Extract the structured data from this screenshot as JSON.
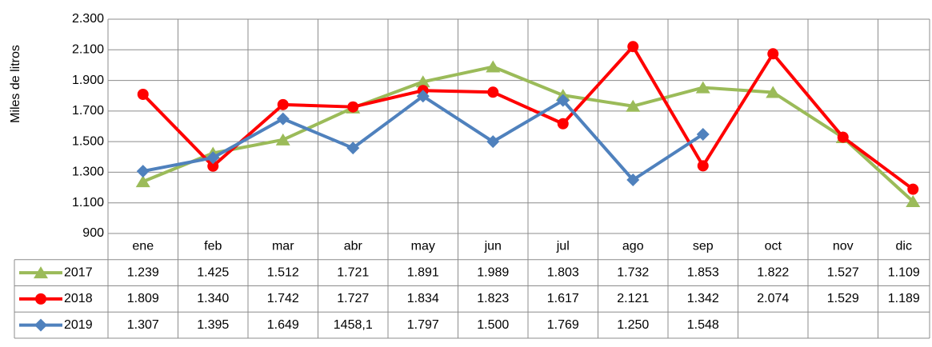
{
  "chart_data": {
    "type": "line",
    "y_label": "Miles de litros",
    "categories": [
      "ene",
      "feb",
      "mar",
      "abr",
      "may",
      "jun",
      "jul",
      "ago",
      "sep",
      "oct",
      "nov",
      "dic"
    ],
    "ylim": [
      900,
      2300
    ],
    "yticks": [
      900,
      {
        "value": 1100,
        "label": "1.100"
      },
      {
        "value": 1300,
        "label": "1.300"
      },
      {
        "value": 1500,
        "label": "1.500"
      },
      {
        "value": 1700,
        "label": "1.700"
      },
      {
        "value": 1900,
        "label": "1.900"
      },
      {
        "value": 2100,
        "label": "2.100"
      },
      {
        "value": 2300,
        "label": "2.300"
      }
    ],
    "grid": true,
    "series": [
      {
        "name": "2017",
        "color": "#9bbb59",
        "marker": "triangle",
        "values": [
          1239,
          1425,
          1512,
          1721,
          1891,
          1989,
          1803,
          1732,
          1853,
          1822,
          1527,
          1109
        ],
        "value_labels": [
          "1.239",
          "1.425",
          "1.512",
          "1.721",
          "1.891",
          "1.989",
          "1.803",
          "1.732",
          "1.853",
          "1.822",
          "1.527",
          "1.109"
        ]
      },
      {
        "name": "2018",
        "color": "#ff0000",
        "marker": "circle",
        "values": [
          1809,
          1340,
          1742,
          1727,
          1834,
          1823,
          1617,
          2121,
          1342,
          2074,
          1529,
          1189
        ],
        "value_labels": [
          "1.809",
          "1.340",
          "1.742",
          "1.727",
          "1.834",
          "1.823",
          "1.617",
          "2.121",
          "1.342",
          "2.074",
          "1.529",
          "1.189"
        ]
      },
      {
        "name": "2019",
        "color": "#4f81bd",
        "marker": "diamond",
        "values": [
          1307,
          1395,
          1649,
          1458.1,
          1797,
          1500,
          1769,
          1250,
          1548,
          null,
          null,
          null
        ],
        "value_labels": [
          "1.307",
          "1.395",
          "1.649",
          "1458,1",
          "1.797",
          "1.500",
          "1.769",
          "1.250",
          "1.548",
          null,
          null,
          null
        ]
      }
    ]
  }
}
